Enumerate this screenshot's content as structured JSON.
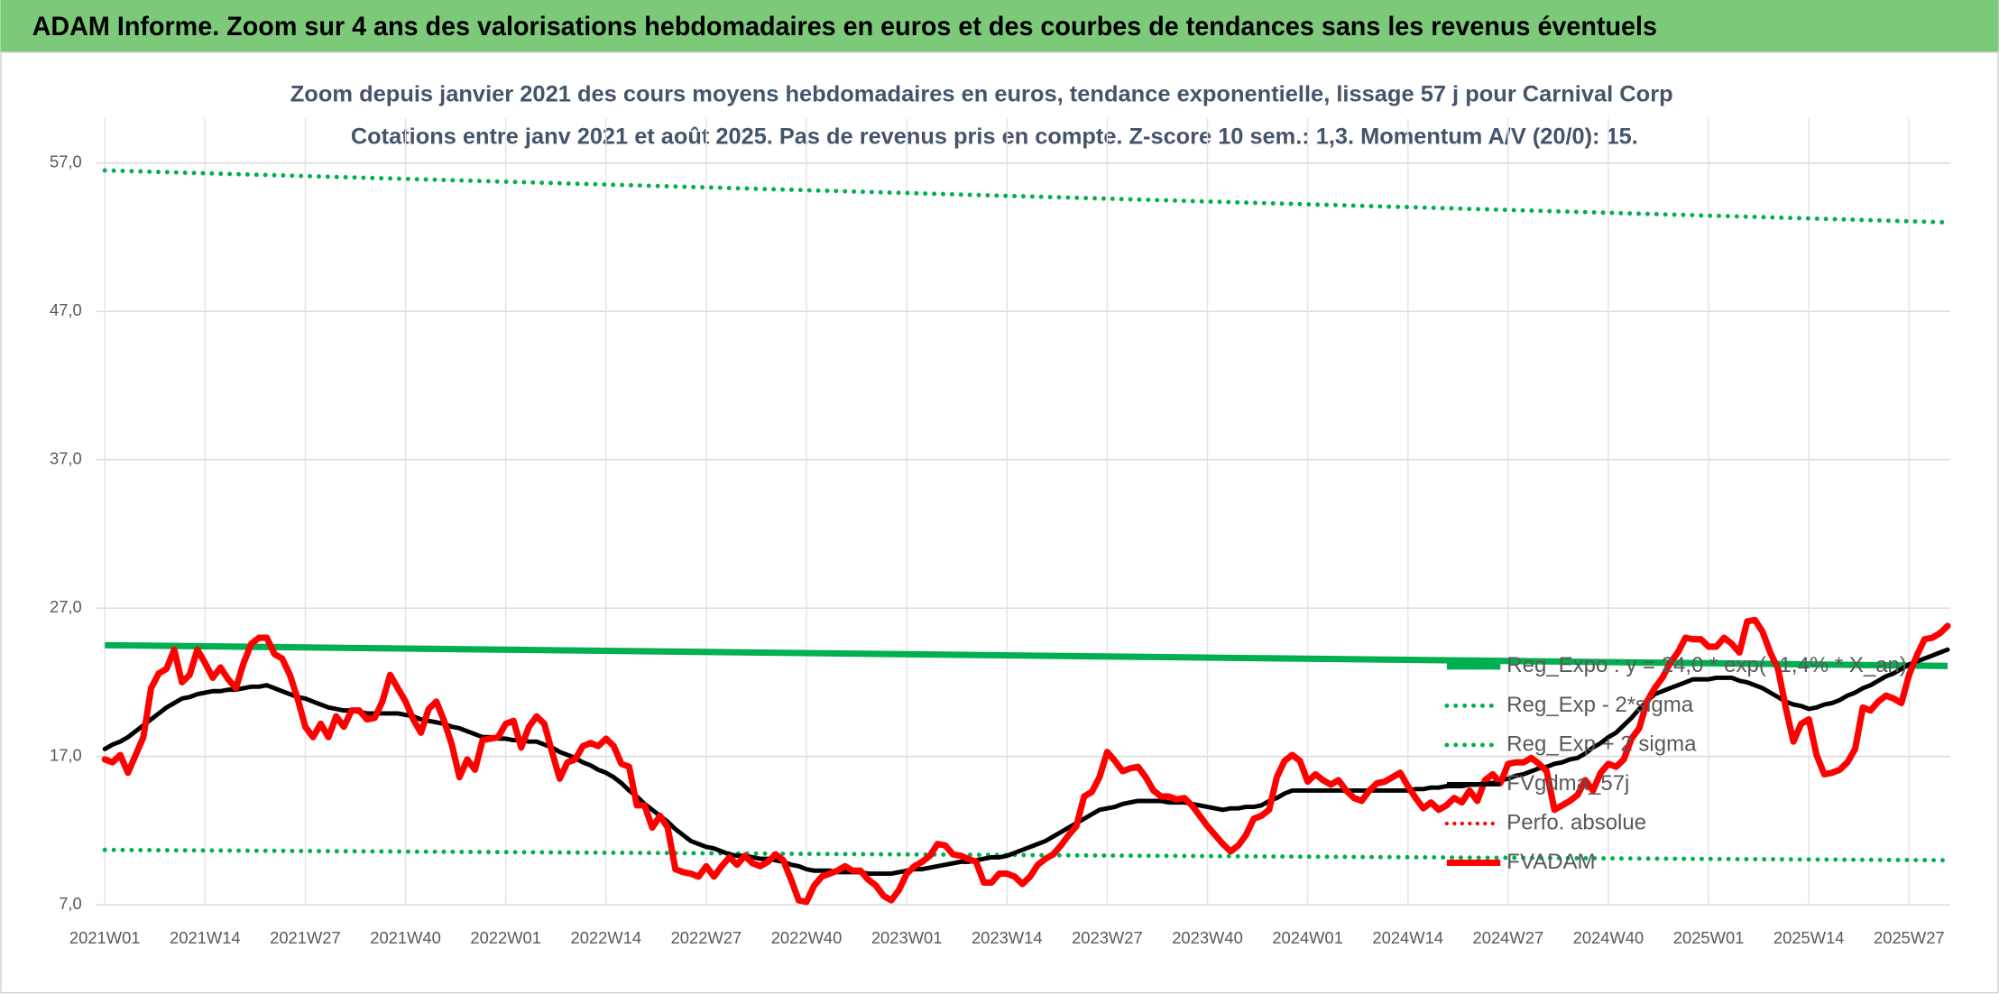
{
  "header": {
    "title": "ADAM Informe. Zoom sur 4 ans des valorisations hebdomadaires en euros et des courbes de tendances sans les revenus éventuels"
  },
  "chart_data": {
    "type": "line",
    "title": "Zoom depuis janvier 2021 des cours moyens hebdomadaires en euros, tendance exponentielle, lissage 57 j pour Carnival Corp",
    "subtitle": "Cotations entre janv 2021 et août 2025. Pas de revenus pris en compte. Z-score 10 sem.: 1,3. Momentum A/V (20/0): 15.",
    "categories": [
      "2021W01",
      null,
      null,
      null,
      null,
      null,
      null,
      null,
      null,
      null,
      null,
      null,
      null,
      "2021W14",
      null,
      null,
      null,
      null,
      null,
      null,
      null,
      null,
      null,
      null,
      null,
      null,
      "2021W27",
      null,
      null,
      null,
      null,
      null,
      null,
      null,
      null,
      null,
      null,
      null,
      null,
      "2021W40",
      null,
      null,
      null,
      null,
      null,
      null,
      null,
      null,
      null,
      null,
      null,
      null,
      "2022W01",
      null,
      null,
      null,
      null,
      null,
      null,
      null,
      null,
      null,
      null,
      null,
      null,
      "2022W14",
      null,
      null,
      null,
      null,
      null,
      null,
      null,
      null,
      null,
      null,
      null,
      null,
      "2022W27",
      null,
      null,
      null,
      null,
      null,
      null,
      null,
      null,
      null,
      null,
      null,
      null,
      "2022W40",
      null,
      null,
      null,
      null,
      null,
      null,
      null,
      null,
      null,
      null,
      null,
      null,
      "2023W01",
      null,
      null,
      null,
      null,
      null,
      null,
      null,
      null,
      null,
      null,
      null,
      null,
      "2023W14",
      null,
      null,
      null,
      null,
      null,
      null,
      null,
      null,
      null,
      null,
      null,
      null,
      "2023W27",
      null,
      null,
      null,
      null,
      null,
      null,
      null,
      null,
      null,
      null,
      null,
      null,
      "2023W40",
      null,
      null,
      null,
      null,
      null,
      null,
      null,
      null,
      null,
      null,
      null,
      null,
      "2024W01",
      null,
      null,
      null,
      null,
      null,
      null,
      null,
      null,
      null,
      null,
      null,
      null,
      "2024W14",
      null,
      null,
      null,
      null,
      null,
      null,
      null,
      null,
      null,
      null,
      null,
      null,
      "2024W27",
      null,
      null,
      null,
      null,
      null,
      null,
      null,
      null,
      null,
      null,
      null,
      null,
      "2024W40",
      null,
      null,
      null,
      null,
      null,
      null,
      null,
      null,
      null,
      null,
      null,
      null,
      "2025W01",
      null,
      null,
      null,
      null,
      null,
      null,
      null,
      null,
      null,
      null,
      null,
      null,
      "2025W14",
      null,
      null,
      null,
      null,
      null,
      null,
      null,
      null,
      null,
      null,
      null,
      null,
      "2025W27",
      null,
      null,
      null,
      null,
      null
    ],
    "series": [
      {
        "name": "FVgdma_57j",
        "color": "#000000",
        "width": 3.5,
        "values": [
          17.5,
          17.8,
          18.0,
          18.3,
          18.7,
          19.1,
          19.5,
          19.9,
          20.3,
          20.6,
          20.9,
          21.0,
          21.2,
          21.3,
          21.4,
          21.4,
          21.5,
          21.5,
          21.6,
          21.7,
          21.7,
          21.8,
          21.6,
          21.4,
          21.2,
          21.0,
          20.9,
          20.7,
          20.5,
          20.3,
          20.2,
          20.1,
          20.1,
          20.0,
          19.9,
          19.9,
          19.9,
          19.9,
          19.9,
          19.8,
          19.7,
          19.5,
          19.4,
          19.3,
          19.2,
          19.0,
          18.9,
          18.7,
          18.5,
          18.3,
          18.3,
          18.2,
          18.2,
          18.1,
          18.1,
          18.0,
          18.0,
          17.8,
          17.6,
          17.3,
          17.1,
          16.9,
          16.6,
          16.4,
          16.1,
          15.9,
          15.6,
          15.2,
          14.7,
          14.3,
          13.8,
          13.4,
          13.0,
          12.6,
          12.1,
          11.7,
          11.3,
          11.1,
          10.9,
          10.8,
          10.6,
          10.4,
          10.3,
          10.3,
          10.2,
          10.1,
          10.1,
          10.0,
          9.9,
          9.7,
          9.6,
          9.4,
          9.3,
          9.3,
          9.3,
          9.2,
          9.2,
          9.2,
          9.2,
          9.1,
          9.1,
          9.1,
          9.1,
          9.2,
          9.3,
          9.4,
          9.4,
          9.5,
          9.6,
          9.7,
          9.8,
          9.9,
          9.9,
          10.0,
          10.1,
          10.2,
          10.2,
          10.3,
          10.5,
          10.7,
          10.9,
          11.1,
          11.3,
          11.6,
          11.9,
          12.2,
          12.5,
          12.8,
          13.1,
          13.4,
          13.5,
          13.6,
          13.8,
          13.9,
          14.0,
          14.0,
          14.0,
          14.0,
          13.9,
          13.9,
          13.9,
          13.8,
          13.7,
          13.6,
          13.5,
          13.4,
          13.5,
          13.5,
          13.6,
          13.6,
          13.7,
          14.0,
          14.2,
          14.5,
          14.7,
          14.7,
          14.7,
          14.7,
          14.7,
          14.7,
          14.7,
          14.7,
          14.7,
          14.7,
          14.7,
          14.7,
          14.7,
          14.7,
          14.7,
          14.7,
          14.8,
          14.8,
          14.9,
          14.9,
          15.0,
          15.0,
          15.0,
          15.1,
          15.1,
          15.2,
          15.2,
          15.4,
          15.5,
          15.7,
          15.8,
          16.0,
          16.2,
          16.3,
          16.5,
          16.6,
          16.8,
          16.9,
          17.2,
          17.6,
          17.9,
          18.3,
          18.6,
          19.1,
          19.6,
          20.2,
          20.7,
          21.2,
          21.4,
          21.6,
          21.8,
          22.0,
          22.2,
          22.2,
          22.2,
          22.3,
          22.3,
          22.3,
          22.1,
          22.0,
          21.8,
          21.6,
          21.3,
          21.0,
          20.7,
          20.5,
          20.4,
          20.2,
          20.3,
          20.5,
          20.6,
          20.8,
          21.1,
          21.3,
          21.6,
          21.8,
          22.1,
          22.4,
          22.6,
          22.9,
          23.2,
          23.4,
          23.6,
          23.8,
          24.0,
          24.2
        ]
      },
      {
        "name": "FVADAM",
        "color": "#ff0000",
        "width": 5,
        "values": [
          16.8,
          16.6,
          17.1,
          15.9,
          17.1,
          18.3,
          21.6,
          22.6,
          22.9,
          24.2,
          22.0,
          22.5,
          24.2,
          23.3,
          22.3,
          23.0,
          22.2,
          21.6,
          23.3,
          24.6,
          25.0,
          25.0,
          23.9,
          23.6,
          22.5,
          20.9,
          19.0,
          18.3,
          19.2,
          18.3,
          19.7,
          19.0,
          20.1,
          20.1,
          19.5,
          19.6,
          20.7,
          22.5,
          21.6,
          20.7,
          19.5,
          18.6,
          20.2,
          20.7,
          19.4,
          17.8,
          15.6,
          16.8,
          16.1,
          18.1,
          18.2,
          18.3,
          19.2,
          19.4,
          17.6,
          19.0,
          19.7,
          19.2,
          17.3,
          15.5,
          16.6,
          16.8,
          17.7,
          17.9,
          17.7,
          18.2,
          17.7,
          16.5,
          16.3,
          13.7,
          13.7,
          12.2,
          13.0,
          12.2,
          9.4,
          9.2,
          9.1,
          8.9,
          9.6,
          8.9,
          9.6,
          10.2,
          9.7,
          10.3,
          9.8,
          9.6,
          9.9,
          10.4,
          10.0,
          8.7,
          7.3,
          7.2,
          8.3,
          8.9,
          9.1,
          9.3,
          9.6,
          9.3,
          9.3,
          8.7,
          8.3,
          7.6,
          7.3,
          8.0,
          9.1,
          9.6,
          9.9,
          10.3,
          11.1,
          11.0,
          10.4,
          10.3,
          10.1,
          9.9,
          8.5,
          8.5,
          9.1,
          9.1,
          8.9,
          8.4,
          8.9,
          9.7,
          10.1,
          10.4,
          11.0,
          11.7,
          12.3,
          14.3,
          14.6,
          15.6,
          17.3,
          16.7,
          16.0,
          16.2,
          16.3,
          15.6,
          14.7,
          14.3,
          14.3,
          14.1,
          14.2,
          13.7,
          13.0,
          12.3,
          11.7,
          11.1,
          10.6,
          11.0,
          11.7,
          12.8,
          13.0,
          13.4,
          15.6,
          16.7,
          17.1,
          16.7,
          15.3,
          15.8,
          15.4,
          15.1,
          15.4,
          14.7,
          14.2,
          14.0,
          14.7,
          15.2,
          15.3,
          15.6,
          15.9,
          15.0,
          14.2,
          13.5,
          13.9,
          13.4,
          13.7,
          14.2,
          13.9,
          14.7,
          14.0,
          15.4,
          15.8,
          15.2,
          16.5,
          16.6,
          16.6,
          16.9,
          16.5,
          16.0,
          13.4,
          13.7,
          14.0,
          14.4,
          15.4,
          14.7,
          15.9,
          16.5,
          16.3,
          16.8,
          18.2,
          18.9,
          20.7,
          21.6,
          22.3,
          23.3,
          24.0,
          25.0,
          24.9,
          24.9,
          24.4,
          24.4,
          25.0,
          24.6,
          24.0,
          26.1,
          26.2,
          25.4,
          24.0,
          22.9,
          20.3,
          18.0,
          19.2,
          19.5,
          17.1,
          15.8,
          15.9,
          16.1,
          16.6,
          17.5,
          20.3,
          20.1,
          20.7,
          21.1,
          20.9,
          20.6,
          22.5,
          23.8,
          24.9,
          25.0,
          25.3,
          25.8
        ]
      }
    ],
    "trends": [
      {
        "name": "Reg_Expo : y = 24,0 * exp( -1,4% * X_an)",
        "color": "#00b050",
        "style": "solid",
        "start": 24.5,
        "end": 23.1
      },
      {
        "name": "Reg_Exp - 2*sigma",
        "color": "#00b050",
        "style": "dotted",
        "start": 10.7,
        "end": 10.0
      },
      {
        "name": "Reg_Exp + 2 sigma",
        "color": "#00b050",
        "style": "dotted",
        "start": 56.5,
        "end": 53.0
      }
    ],
    "extra_legend": [
      {
        "name": "Perfo. absolue",
        "color": "#ff0000",
        "style": "dotted"
      }
    ],
    "ylim": [
      7,
      60
    ],
    "yticks": [
      {
        "value": 7,
        "label": "7,0"
      },
      {
        "value": 17,
        "label": "17,0"
      },
      {
        "value": 27,
        "label": "27,0"
      },
      {
        "value": 37,
        "label": "37,0"
      },
      {
        "value": 47,
        "label": "47,0"
      },
      {
        "value": 57,
        "label": "57,0"
      }
    ],
    "grid": true
  }
}
